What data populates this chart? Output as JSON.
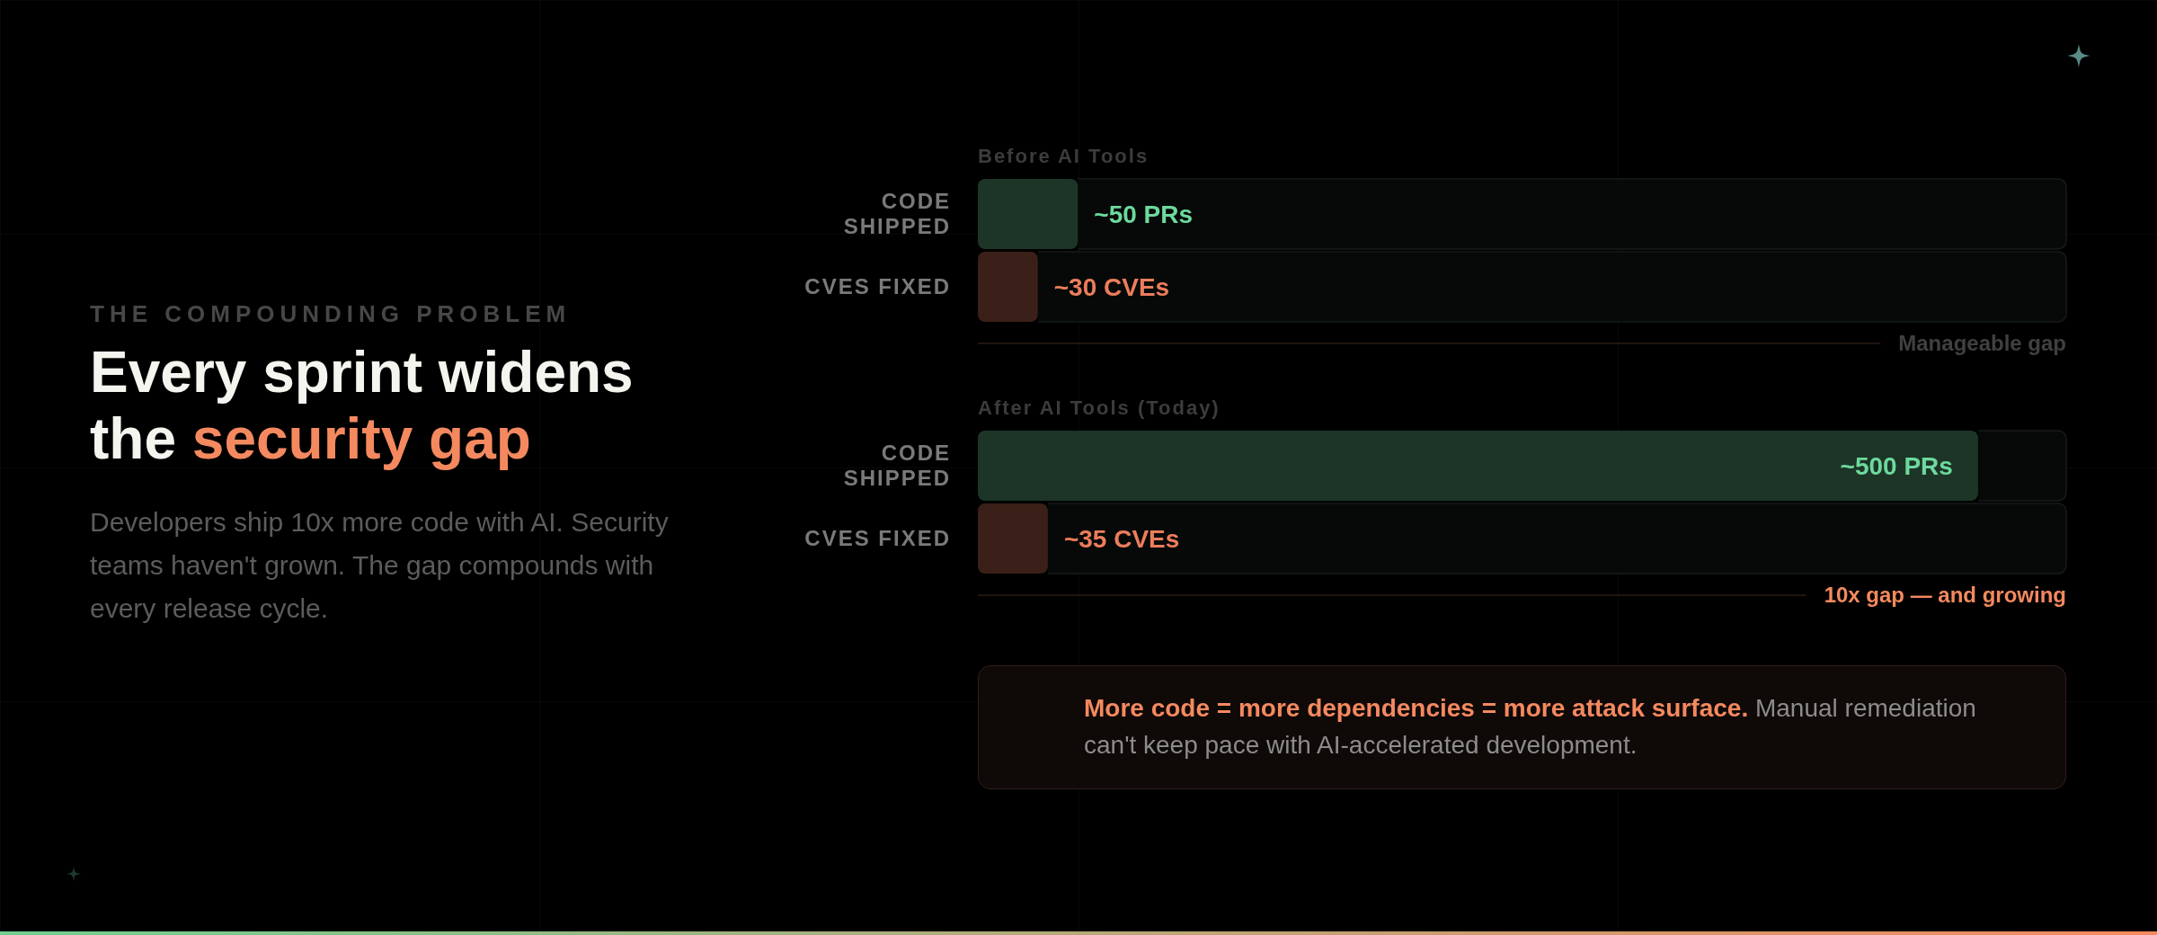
{
  "chart_data": {
    "type": "bar",
    "orientation": "horizontal",
    "subtitle": "THE COMPOUNDING PROBLEM",
    "title": "Every sprint widens the security gap",
    "categories": [
      "Before AI Tools",
      "After AI Tools (Today)"
    ],
    "series": [
      {
        "name": "CODE SHIPPED",
        "color": "#1c3527",
        "values": [
          50,
          500
        ],
        "value_labels": [
          "~50 PRs",
          "~500 PRs"
        ]
      },
      {
        "name": "CVES FIXED",
        "color": "#3a2018",
        "values": [
          30,
          35
        ],
        "value_labels": [
          "~30 CVEs",
          "~35 CVEs"
        ]
      }
    ],
    "ref_lines": [
      {
        "axis": "y",
        "value": "Before AI Tools",
        "label": "Manageable gap",
        "color": "#2c1c16"
      },
      {
        "axis": "y",
        "value": "After AI Tools (Today)",
        "label": "10x gap — and growing",
        "color": "#2c1c16"
      }
    ],
    "annotations": [
      "Developers ship 10x more code with AI. Security teams haven't grown. The gap compounds with every release cycle.",
      "More code = more dependencies = more attack surface.",
      "Manual remediation can't keep pace with AI-accelerated development."
    ]
  }
}
